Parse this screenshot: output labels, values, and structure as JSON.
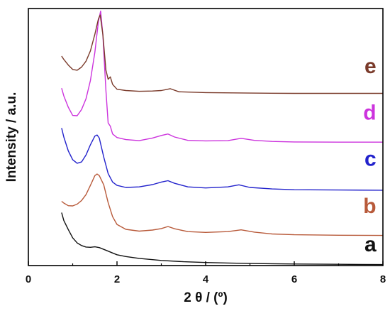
{
  "chart_data": {
    "type": "line",
    "xlabel": "2 θ / (º)",
    "ylabel": "Intensity / a.u.",
    "xlim": [
      0,
      8
    ],
    "ylim": [
      0,
      100
    ],
    "x_ticks": [
      "0",
      "2",
      "4",
      "6",
      "8"
    ],
    "grid": false,
    "y_tick_labels": false,
    "series": [
      {
        "name": "a",
        "color": "#111111",
        "label_at": [
          7.85,
          5.5
        ],
        "points": [
          [
            0.75,
            20.6
          ],
          [
            0.8,
            17.5
          ],
          [
            0.9,
            14.0
          ],
          [
            1.0,
            10.8
          ],
          [
            1.1,
            8.8
          ],
          [
            1.2,
            7.8
          ],
          [
            1.3,
            7.2
          ],
          [
            1.4,
            7.1
          ],
          [
            1.5,
            7.3
          ],
          [
            1.6,
            7.0
          ],
          [
            1.7,
            6.3
          ],
          [
            1.8,
            5.6
          ],
          [
            1.9,
            4.9
          ],
          [
            2.0,
            4.2
          ],
          [
            2.2,
            3.5
          ],
          [
            2.5,
            2.8
          ],
          [
            3.0,
            2.0
          ],
          [
            3.5,
            1.5
          ],
          [
            4.0,
            1.2
          ],
          [
            4.5,
            1.0
          ],
          [
            5.0,
            0.8
          ],
          [
            6.0,
            0.6
          ],
          [
            7.0,
            0.5
          ],
          [
            8.0,
            0.4
          ]
        ]
      },
      {
        "name": "b",
        "color": "#b85a3a",
        "label_at": [
          7.85,
          20.5
        ],
        "points": [
          [
            0.75,
            25.0
          ],
          [
            0.8,
            24.3
          ],
          [
            0.9,
            23.3
          ],
          [
            1.0,
            23.2
          ],
          [
            1.1,
            23.9
          ],
          [
            1.2,
            25.3
          ],
          [
            1.3,
            27.6
          ],
          [
            1.4,
            31.2
          ],
          [
            1.5,
            35.0
          ],
          [
            1.55,
            35.6
          ],
          [
            1.6,
            35.0
          ],
          [
            1.7,
            31.4
          ],
          [
            1.8,
            24.5
          ],
          [
            1.9,
            19.0
          ],
          [
            2.0,
            16.0
          ],
          [
            2.2,
            14.1
          ],
          [
            2.5,
            13.4
          ],
          [
            2.8,
            13.8
          ],
          [
            3.0,
            14.4
          ],
          [
            3.15,
            15.2
          ],
          [
            3.3,
            14.3
          ],
          [
            3.6,
            13.2
          ],
          [
            4.0,
            12.9
          ],
          [
            4.5,
            13.2
          ],
          [
            4.8,
            13.9
          ],
          [
            5.1,
            13.0
          ],
          [
            5.5,
            12.3
          ],
          [
            6.0,
            12.0
          ],
          [
            7.0,
            11.8
          ],
          [
            8.0,
            11.7
          ]
        ]
      },
      {
        "name": "c",
        "color": "#2222cc",
        "label_at": [
          7.85,
          38.8
        ],
        "points": [
          [
            0.75,
            53.5
          ],
          [
            0.8,
            50.0
          ],
          [
            0.9,
            44.6
          ],
          [
            1.0,
            41.2
          ],
          [
            1.1,
            39.8
          ],
          [
            1.2,
            40.3
          ],
          [
            1.3,
            43.0
          ],
          [
            1.4,
            47.0
          ],
          [
            1.5,
            50.4
          ],
          [
            1.55,
            50.8
          ],
          [
            1.6,
            49.6
          ],
          [
            1.7,
            42.2
          ],
          [
            1.8,
            35.8
          ],
          [
            1.9,
            32.5
          ],
          [
            2.0,
            31.2
          ],
          [
            2.2,
            30.4
          ],
          [
            2.5,
            30.6
          ],
          [
            2.8,
            31.5
          ],
          [
            3.0,
            32.5
          ],
          [
            3.15,
            33.0
          ],
          [
            3.3,
            32.0
          ],
          [
            3.6,
            30.6
          ],
          [
            4.0,
            30.2
          ],
          [
            4.5,
            30.6
          ],
          [
            4.75,
            31.4
          ],
          [
            5.0,
            30.4
          ],
          [
            5.5,
            29.8
          ],
          [
            6.0,
            29.5
          ],
          [
            7.0,
            29.4
          ],
          [
            8.0,
            29.3
          ]
        ]
      },
      {
        "name": "d",
        "color": "#cc33dd",
        "label_at": [
          7.85,
          56.8
        ],
        "points": [
          [
            0.75,
            69.0
          ],
          [
            0.8,
            66.0
          ],
          [
            0.9,
            61.6
          ],
          [
            1.0,
            58.4
          ],
          [
            1.1,
            58.3
          ],
          [
            1.2,
            60.7
          ],
          [
            1.3,
            64.9
          ],
          [
            1.4,
            72.0
          ],
          [
            1.5,
            83.0
          ],
          [
            1.58,
            95.0
          ],
          [
            1.63,
            99.0
          ],
          [
            1.68,
            90.0
          ],
          [
            1.75,
            68.0
          ],
          [
            1.8,
            55.5
          ],
          [
            1.85,
            54.2
          ],
          [
            1.9,
            51.2
          ],
          [
            2.0,
            49.8
          ],
          [
            2.2,
            49.0
          ],
          [
            2.5,
            48.6
          ],
          [
            2.8,
            49.6
          ],
          [
            3.0,
            50.6
          ],
          [
            3.15,
            51.2
          ],
          [
            3.3,
            50.0
          ],
          [
            3.6,
            48.7
          ],
          [
            4.0,
            48.5
          ],
          [
            4.5,
            48.6
          ],
          [
            4.8,
            49.5
          ],
          [
            5.1,
            48.7
          ],
          [
            5.5,
            48.3
          ],
          [
            6.0,
            48.1
          ],
          [
            7.0,
            48.0
          ],
          [
            8.0,
            48.0
          ]
        ]
      },
      {
        "name": "e",
        "color": "#7a3a2a",
        "label_at": [
          7.85,
          74.8
        ],
        "points": [
          [
            0.75,
            81.5
          ],
          [
            0.8,
            80.2
          ],
          [
            0.9,
            78.0
          ],
          [
            1.0,
            76.3
          ],
          [
            1.1,
            76.0
          ],
          [
            1.2,
            77.2
          ],
          [
            1.3,
            79.5
          ],
          [
            1.4,
            83.5
          ],
          [
            1.5,
            90.0
          ],
          [
            1.58,
            96.0
          ],
          [
            1.62,
            97.5
          ],
          [
            1.68,
            90.0
          ],
          [
            1.75,
            76.0
          ],
          [
            1.8,
            72.5
          ],
          [
            1.85,
            73.4
          ],
          [
            1.9,
            70.5
          ],
          [
            2.0,
            68.6
          ],
          [
            2.2,
            68.1
          ],
          [
            2.5,
            67.8
          ],
          [
            2.8,
            67.9
          ],
          [
            3.0,
            68.1
          ],
          [
            3.2,
            68.8
          ],
          [
            3.4,
            67.6
          ],
          [
            4.0,
            67.3
          ],
          [
            5.0,
            67.1
          ],
          [
            6.0,
            67.0
          ],
          [
            7.0,
            67.0
          ],
          [
            8.0,
            67.0
          ]
        ]
      }
    ]
  }
}
